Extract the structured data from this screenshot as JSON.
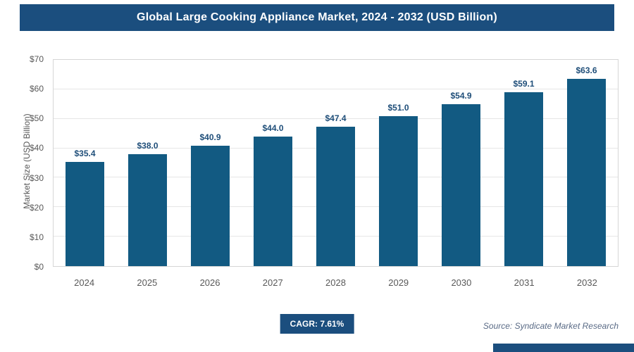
{
  "header": {
    "title": "Global Large Cooking Appliance Market, 2024 - 2032 (USD Billion)"
  },
  "chart_data": {
    "type": "bar",
    "title": "Global Large Cooking Appliance Market, 2024 - 2032 (USD Billion)",
    "categories": [
      "2024",
      "2025",
      "2026",
      "2027",
      "2028",
      "2029",
      "2030",
      "2031",
      "2032"
    ],
    "values": [
      35.4,
      38.0,
      40.9,
      44.0,
      47.4,
      51.0,
      54.9,
      59.1,
      63.6
    ],
    "value_labels": [
      "$35.4",
      "$38.0",
      "$40.9",
      "$44.0",
      "$47.4",
      "$51.0",
      "$54.9",
      "$59.1",
      "$63.6"
    ],
    "xlabel": "",
    "ylabel": "Market Size (USD Billion)",
    "ylim": [
      0,
      70
    ],
    "ytick_step": 10,
    "ytick_labels": [
      "$0",
      "$10",
      "$20",
      "$30",
      "$40",
      "$50",
      "$60",
      "$70"
    ],
    "grid": true,
    "legend": "none",
    "bar_color": "#125a82"
  },
  "footer": {
    "cagr_label": "CAGR: 7.61%",
    "source": "Source: Syndicate Market Research"
  },
  "colors": {
    "header_bg": "#1b4e7e",
    "bar_fill": "#125a82",
    "value_label": "#1f4e79",
    "axis_text": "#595959",
    "gridline": "#e6e6e6"
  }
}
